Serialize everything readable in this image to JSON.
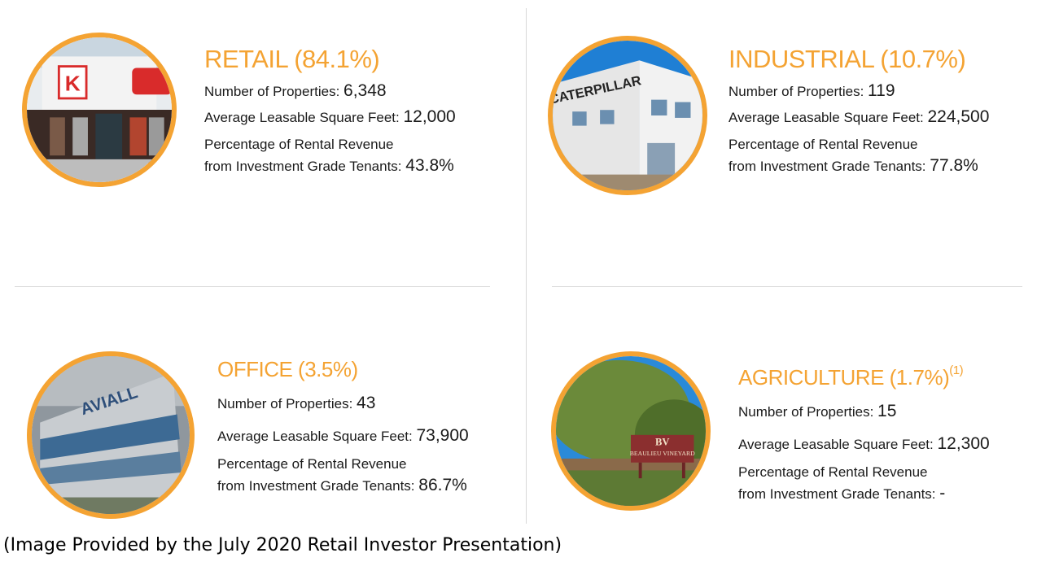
{
  "accent_color": "#f4a333",
  "quadrants": {
    "retail": {
      "title": "RETAIL (84.1%)",
      "image_icon": "retail-store-photo",
      "num_label": "Number of Properties:",
      "num_value": "6,348",
      "sqft_label": "Average Leasable Square Feet:",
      "sqft_value": "12,000",
      "pct_label_1": "Percentage of Rental Revenue",
      "pct_label_2": "from Investment Grade Tenants:",
      "pct_value": "43.8%"
    },
    "industrial": {
      "title": "INDUSTRIAL (10.7%)",
      "image_icon": "caterpillar-building-photo",
      "num_label": "Number of Properties:",
      "num_value": "119",
      "sqft_label": "Average Leasable Square Feet:",
      "sqft_value": "224,500",
      "pct_label_1": "Percentage of Rental Revenue",
      "pct_label_2": "from Investment Grade Tenants:",
      "pct_value": "77.8%"
    },
    "office": {
      "title": "OFFICE (3.5%)",
      "image_icon": "aviall-office-photo",
      "num_label": "Number of Properties:",
      "num_value": "43",
      "sqft_label": "Average Leasable Square Feet:",
      "sqft_value": "73,900",
      "pct_label_1": "Percentage of Rental Revenue",
      "pct_label_2": "from Investment Grade Tenants:",
      "pct_value": "86.7%"
    },
    "agriculture": {
      "title": "AGRICULTURE (1.7%)",
      "footnote": "(1)",
      "image_icon": "vineyard-sign-photo",
      "num_label": "Number of Properties:",
      "num_value": "15",
      "sqft_label": "Average Leasable Square Feet:",
      "sqft_value": "12,300",
      "pct_label_1": "Percentage of Rental Revenue",
      "pct_label_2": "from Investment Grade Tenants:",
      "pct_value": "-"
    }
  },
  "photo_text": {
    "retail_logo": "K",
    "industrial_sign": "CATERPILLAR",
    "office_sign": "AVIALL",
    "vineyard_logo": "BV",
    "vineyard_name": "BEAULIEU VINEYARD"
  },
  "caption": "(Image Provided by the July 2020 Retail Investor Presentation)"
}
